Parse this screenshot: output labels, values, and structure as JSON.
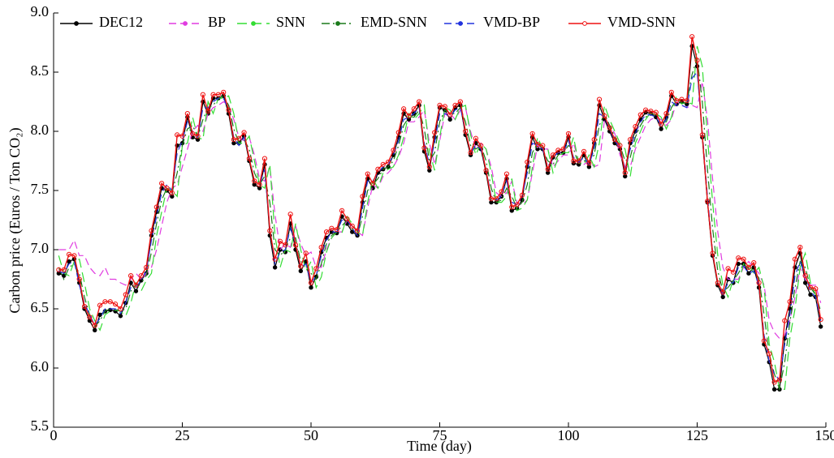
{
  "chart_data": {
    "type": "line",
    "xlabel": "Time (day)",
    "ylabel": "Carbon price (Euros / Ton CO₂)",
    "xlim": [
      0,
      150
    ],
    "xticks": [
      0,
      25,
      50,
      75,
      100,
      125,
      150
    ],
    "ylim": [
      5.5,
      9.0
    ],
    "yticks": [
      5.5,
      {
        "value": 6,
        "label": "6.0"
      },
      6.5,
      {
        "value": 7,
        "label": "7.0"
      },
      7.5,
      {
        "value": 8,
        "label": "8.0"
      },
      8.5,
      {
        "value": 9,
        "label": "9.0"
      }
    ],
    "legend": "top",
    "x": [
      1,
      2,
      3,
      4,
      5,
      6,
      7,
      8,
      9,
      10,
      11,
      12,
      13,
      14,
      15,
      16,
      17,
      18,
      19,
      20,
      21,
      22,
      23,
      24,
      25,
      26,
      27,
      28,
      29,
      30,
      31,
      32,
      33,
      34,
      35,
      36,
      37,
      38,
      39,
      40,
      41,
      42,
      43,
      44,
      45,
      46,
      47,
      48,
      49,
      50,
      51,
      52,
      53,
      54,
      55,
      56,
      57,
      58,
      59,
      60,
      61,
      62,
      63,
      64,
      65,
      66,
      67,
      68,
      69,
      70,
      71,
      72,
      73,
      74,
      75,
      76,
      77,
      78,
      79,
      80,
      81,
      82,
      83,
      84,
      85,
      86,
      87,
      88,
      89,
      90,
      91,
      92,
      93,
      94,
      95,
      96,
      97,
      98,
      99,
      100,
      101,
      102,
      103,
      104,
      105,
      106,
      107,
      108,
      109,
      110,
      111,
      112,
      113,
      114,
      115,
      116,
      117,
      118,
      119,
      120,
      121,
      122,
      123,
      124,
      125,
      126,
      127,
      128,
      129,
      130,
      131,
      132,
      133,
      134,
      135,
      136,
      137,
      138,
      139,
      140,
      141,
      142,
      143,
      144,
      145,
      146,
      147,
      148,
      149
    ],
    "series": [
      {
        "name": "DEC12",
        "color": "#000000",
        "values": [
          6.8,
          6.78,
          6.9,
          6.92,
          6.72,
          6.5,
          6.4,
          6.32,
          6.45,
          6.48,
          6.49,
          6.48,
          6.44,
          6.55,
          6.72,
          6.65,
          6.74,
          6.8,
          7.12,
          7.32,
          7.52,
          7.5,
          7.45,
          7.88,
          7.9,
          8.12,
          7.95,
          7.93,
          8.25,
          8.15,
          8.28,
          8.28,
          8.3,
          8.15,
          7.9,
          7.9,
          7.96,
          7.75,
          7.55,
          7.52,
          7.72,
          7.12,
          6.85,
          7.0,
          6.98,
          7.22,
          7.0,
          6.82,
          6.9,
          6.68,
          6.77,
          6.98,
          7.1,
          7.15,
          7.14,
          7.28,
          7.22,
          7.15,
          7.12,
          7.4,
          7.6,
          7.52,
          7.65,
          7.68,
          7.7,
          7.8,
          7.95,
          8.15,
          8.1,
          8.15,
          8.22,
          7.83,
          7.67,
          7.95,
          8.2,
          8.18,
          8.1,
          8.2,
          8.22,
          7.97,
          7.8,
          7.9,
          7.85,
          7.65,
          7.4,
          7.4,
          7.45,
          7.6,
          7.33,
          7.35,
          7.42,
          7.7,
          7.95,
          7.85,
          7.85,
          7.65,
          7.78,
          7.82,
          7.82,
          7.95,
          7.73,
          7.72,
          7.8,
          7.7,
          7.9,
          8.22,
          8.1,
          8.0,
          7.9,
          7.85,
          7.62,
          7.9,
          8.0,
          8.1,
          8.16,
          8.15,
          8.12,
          8.02,
          8.12,
          8.3,
          8.23,
          8.25,
          8.23,
          8.72,
          8.55,
          7.95,
          7.4,
          6.95,
          6.7,
          6.6,
          6.75,
          6.72,
          6.88,
          6.88,
          6.8,
          6.85,
          6.68,
          6.2,
          6.05,
          5.82,
          5.82,
          6.25,
          6.5,
          6.85,
          6.97,
          6.72,
          6.62,
          6.6,
          6.35
        ]
      },
      {
        "name": "BP",
        "color": "#e03ce0",
        "values": [
          7.0,
          7.0,
          7.0,
          7.08,
          6.95,
          6.95,
          6.85,
          6.8,
          6.78,
          6.85,
          6.75,
          6.75,
          6.72,
          6.7,
          6.75,
          6.8,
          6.75,
          6.8,
          6.85,
          7.0,
          7.2,
          7.4,
          7.52,
          7.55,
          7.7,
          7.85,
          8.0,
          8.05,
          8.0,
          8.15,
          8.2,
          8.22,
          8.25,
          8.22,
          8.1,
          7.95,
          7.92,
          7.95,
          7.8,
          7.6,
          7.58,
          7.7,
          7.3,
          7.0,
          7.05,
          7.02,
          7.2,
          7.05,
          6.95,
          6.98,
          6.85,
          6.85,
          7.0,
          7.1,
          7.15,
          7.15,
          7.25,
          7.2,
          7.15,
          7.12,
          7.35,
          7.55,
          7.52,
          7.62,
          7.65,
          7.7,
          7.78,
          7.9,
          8.08,
          8.08,
          8.12,
          8.18,
          7.9,
          7.72,
          7.92,
          8.15,
          8.15,
          8.1,
          8.18,
          8.2,
          8.0,
          7.85,
          7.9,
          7.85,
          7.7,
          7.48,
          7.45,
          7.48,
          7.58,
          7.4,
          7.38,
          7.42,
          7.65,
          7.88,
          7.85,
          7.85,
          7.7,
          7.75,
          7.8,
          7.8,
          7.9,
          7.75,
          7.72,
          7.75,
          7.7,
          7.72,
          8.1,
          8.05,
          7.98,
          7.8,
          7.7,
          7.7,
          7.85,
          7.95,
          8.05,
          8.1,
          8.12,
          8.1,
          8.05,
          8.1,
          8.25,
          8.22,
          8.2,
          8.22,
          8.2,
          8.42,
          8.1,
          7.6,
          7.15,
          6.85,
          6.75,
          6.75,
          6.75,
          6.85,
          6.9,
          6.85,
          6.8,
          6.7,
          6.4,
          6.3,
          6.25,
          6.28,
          6.4,
          6.6,
          6.85,
          6.75,
          6.7,
          6.7,
          6.55
        ]
      },
      {
        "name": "SNN",
        "color": "#33dd33",
        "values": [
          6.95,
          6.8,
          6.78,
          6.9,
          6.92,
          6.72,
          6.5,
          6.4,
          6.32,
          6.45,
          6.48,
          6.49,
          6.48,
          6.44,
          6.55,
          6.72,
          6.65,
          6.74,
          6.8,
          7.12,
          7.32,
          7.52,
          7.5,
          7.45,
          7.88,
          7.9,
          8.12,
          7.95,
          7.93,
          8.25,
          8.15,
          8.28,
          8.28,
          8.3,
          8.15,
          7.9,
          7.9,
          7.96,
          7.75,
          7.55,
          7.52,
          7.72,
          7.12,
          6.85,
          7.0,
          6.98,
          7.22,
          7.0,
          6.82,
          6.9,
          6.68,
          6.77,
          6.98,
          7.1,
          7.15,
          7.14,
          7.28,
          7.22,
          7.15,
          7.12,
          7.4,
          7.6,
          7.52,
          7.65,
          7.68,
          7.7,
          7.8,
          7.95,
          8.15,
          8.1,
          8.15,
          8.22,
          7.83,
          7.67,
          7.95,
          8.2,
          8.18,
          8.1,
          8.2,
          8.22,
          7.97,
          7.8,
          7.9,
          7.85,
          7.65,
          7.4,
          7.4,
          7.45,
          7.6,
          7.33,
          7.35,
          7.42,
          7.7,
          7.95,
          7.85,
          7.85,
          7.65,
          7.78,
          7.82,
          7.82,
          7.95,
          7.73,
          7.72,
          7.8,
          7.7,
          7.9,
          8.22,
          8.1,
          8.0,
          7.9,
          7.85,
          7.62,
          7.9,
          8.0,
          8.1,
          8.16,
          8.15,
          8.12,
          8.02,
          8.12,
          8.3,
          8.23,
          8.25,
          8.23,
          8.72,
          8.55,
          7.95,
          7.4,
          6.95,
          6.7,
          6.6,
          6.75,
          6.72,
          6.88,
          6.88,
          6.8,
          6.85,
          6.68,
          6.2,
          6.05,
          5.82,
          5.82,
          6.25,
          6.5,
          6.85,
          6.97,
          6.72,
          6.62,
          6.6
        ]
      },
      {
        "name": "EMD-SNN",
        "color": "#1a7a1a",
        "values": [
          6.85,
          6.75,
          6.85,
          6.88,
          6.8,
          6.6,
          6.45,
          6.35,
          6.4,
          6.48,
          6.5,
          6.5,
          6.48,
          6.5,
          6.65,
          6.7,
          6.72,
          6.78,
          6.98,
          7.22,
          7.42,
          7.52,
          7.48,
          7.65,
          7.88,
          8.02,
          8.05,
          7.95,
          8.1,
          8.2,
          8.22,
          8.28,
          8.3,
          8.22,
          8.02,
          7.9,
          7.93,
          7.85,
          7.65,
          7.55,
          7.62,
          7.4,
          7.0,
          6.95,
          7.0,
          7.1,
          7.1,
          6.9,
          6.88,
          6.8,
          6.75,
          6.88,
          7.05,
          7.12,
          7.15,
          7.2,
          7.25,
          7.18,
          7.12,
          7.28,
          7.5,
          7.55,
          7.6,
          7.68,
          7.7,
          7.75,
          7.88,
          8.05,
          8.12,
          8.12,
          8.18,
          8.02,
          7.75,
          7.82,
          8.08,
          8.18,
          8.15,
          8.15,
          8.2,
          8.08,
          7.88,
          7.85,
          7.88,
          7.75,
          7.52,
          7.4,
          7.42,
          7.52,
          7.45,
          7.35,
          7.4,
          7.55,
          7.82,
          7.9,
          7.85,
          7.75,
          7.72,
          7.8,
          7.82,
          7.88,
          7.85,
          7.72,
          7.75,
          7.75,
          7.8,
          8.05,
          8.15,
          8.05,
          7.95,
          7.88,
          7.75,
          7.78,
          7.95,
          8.05,
          8.12,
          8.15,
          8.14,
          8.08,
          8.08,
          8.2,
          8.27,
          8.24,
          8.24,
          8.48,
          8.62,
          8.25,
          7.68,
          7.18,
          6.82,
          6.65,
          6.68,
          6.74,
          6.8,
          6.88,
          6.84,
          6.82,
          6.76,
          6.45,
          6.12,
          5.95,
          5.82,
          6.05,
          6.38,
          6.68,
          6.9,
          6.85,
          6.68,
          6.62,
          6.48
        ]
      },
      {
        "name": "VMD-BP",
        "color": "#2233dd",
        "values": [
          6.82,
          6.8,
          6.88,
          6.9,
          6.7,
          6.55,
          6.45,
          6.36,
          6.42,
          6.5,
          6.5,
          6.5,
          6.46,
          6.55,
          6.68,
          6.68,
          6.74,
          6.82,
          7.08,
          7.28,
          7.48,
          7.55,
          7.5,
          7.82,
          7.92,
          8.08,
          8.0,
          7.95,
          8.2,
          8.2,
          8.25,
          8.28,
          8.28,
          8.18,
          7.95,
          7.88,
          7.95,
          7.78,
          7.58,
          7.55,
          7.68,
          7.18,
          6.88,
          6.98,
          7.0,
          7.18,
          7.05,
          6.85,
          6.88,
          6.72,
          6.78,
          6.95,
          7.08,
          7.15,
          7.15,
          7.25,
          7.25,
          7.18,
          7.12,
          7.35,
          7.58,
          7.58,
          7.65,
          7.7,
          7.72,
          7.8,
          7.92,
          8.1,
          8.12,
          8.15,
          8.2,
          7.9,
          7.72,
          7.9,
          8.15,
          8.15,
          8.12,
          8.18,
          8.2,
          8.0,
          7.82,
          7.88,
          7.85,
          7.68,
          7.45,
          7.42,
          7.45,
          7.58,
          7.4,
          7.38,
          7.45,
          7.65,
          7.9,
          7.88,
          7.85,
          7.7,
          7.78,
          7.82,
          7.82,
          7.92,
          7.78,
          7.74,
          7.78,
          7.72,
          7.85,
          8.15,
          8.12,
          8.02,
          7.92,
          7.86,
          7.68,
          7.85,
          7.98,
          8.08,
          8.14,
          8.14,
          8.12,
          8.05,
          8.1,
          8.25,
          8.22,
          8.22,
          8.2,
          8.45,
          8.5,
          8.0,
          7.45,
          6.98,
          6.72,
          6.62,
          6.72,
          6.72,
          6.85,
          6.86,
          6.8,
          6.82,
          6.7,
          6.28,
          6.05,
          5.95,
          5.9,
          6.2,
          6.45,
          6.78,
          6.9,
          6.78,
          6.65,
          6.6,
          6.4
        ]
      },
      {
        "name": "VMD-SNN",
        "color": "#ee1111",
        "values": [
          6.83,
          6.83,
          6.96,
          6.95,
          6.75,
          6.52,
          6.43,
          6.36,
          6.53,
          6.56,
          6.56,
          6.54,
          6.5,
          6.62,
          6.78,
          6.7,
          6.78,
          6.85,
          7.16,
          7.36,
          7.56,
          7.52,
          7.48,
          7.97,
          7.96,
          8.15,
          7.98,
          7.96,
          8.31,
          8.17,
          8.31,
          8.31,
          8.33,
          8.18,
          7.93,
          7.94,
          7.99,
          7.77,
          7.58,
          7.55,
          7.77,
          7.16,
          6.92,
          7.07,
          7.04,
          7.3,
          7.04,
          6.86,
          6.97,
          6.72,
          6.84,
          7.02,
          7.15,
          7.18,
          7.17,
          7.33,
          7.26,
          7.2,
          7.16,
          7.45,
          7.64,
          7.56,
          7.68,
          7.72,
          7.74,
          7.84,
          7.99,
          8.19,
          8.13,
          8.19,
          8.25,
          7.86,
          7.7,
          7.99,
          8.22,
          8.21,
          8.14,
          8.22,
          8.25,
          8.0,
          7.82,
          7.94,
          7.88,
          7.67,
          7.43,
          7.43,
          7.49,
          7.64,
          7.36,
          7.38,
          7.46,
          7.74,
          7.98,
          7.89,
          7.88,
          7.68,
          7.8,
          7.84,
          7.85,
          7.98,
          7.75,
          7.75,
          7.83,
          7.73,
          7.93,
          8.27,
          8.13,
          8.03,
          7.93,
          7.88,
          7.65,
          7.93,
          8.04,
          8.14,
          8.18,
          8.17,
          8.16,
          8.06,
          8.15,
          8.33,
          8.26,
          8.27,
          8.26,
          8.8,
          8.6,
          7.97,
          7.41,
          6.97,
          6.72,
          6.64,
          6.84,
          6.81,
          6.93,
          6.92,
          6.85,
          6.89,
          6.72,
          6.23,
          6.12,
          5.88,
          5.9,
          6.4,
          6.56,
          6.92,
          7.02,
          6.78,
          6.68,
          6.67,
          6.41
        ]
      }
    ]
  }
}
